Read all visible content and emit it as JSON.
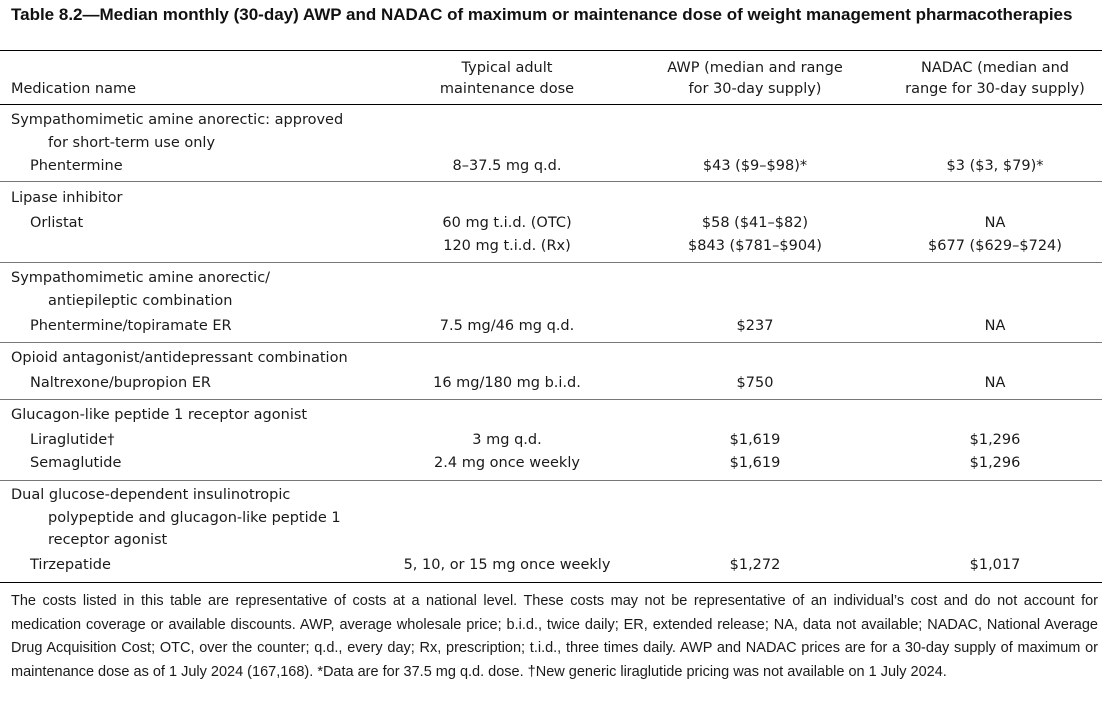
{
  "table": {
    "title": "Table 8.2—Median monthly (30-day) AWP and NADAC of maximum or maintenance dose of weight management pharmacotherapies",
    "headers": {
      "medication": "Medication name",
      "dose_line1": "Typical adult",
      "dose_line2": "maintenance dose",
      "awp_line1": "AWP (median and range",
      "awp_line2": "for 30-day supply)",
      "nadac_line1": "NADAC (median and",
      "nadac_line2": "range for 30-day supply)"
    },
    "groups": [
      {
        "category_lines": [
          "Sympathomimetic amine anorectic: approved",
          "for short-term use only"
        ],
        "rows": [
          {
            "name": "Phentermine",
            "dose": "8–37.5 mg q.d.",
            "awp": "$43 ($9–$98)*",
            "nadac": "$3 ($3, $79)*"
          }
        ]
      },
      {
        "category_lines": [
          "Lipase inhibitor"
        ],
        "rows": [
          {
            "name": "Orlistat",
            "dose": "60 mg t.i.d. (OTC)",
            "awp": "$58 ($41–$82)",
            "nadac": "NA"
          },
          {
            "name": "",
            "dose": "120 mg t.i.d. (Rx)",
            "awp": "$843 ($781–$904)",
            "nadac": "$677 ($629–$724)"
          }
        ]
      },
      {
        "category_lines": [
          "Sympathomimetic amine anorectic/",
          "antiepileptic combination"
        ],
        "rows": [
          {
            "name": "Phentermine/topiramate ER",
            "dose": "7.5 mg/46 mg q.d.",
            "awp": "$237",
            "nadac": "NA"
          }
        ]
      },
      {
        "category_lines": [
          "Opioid antagonist/antidepressant combination"
        ],
        "rows": [
          {
            "name": "Naltrexone/bupropion ER",
            "dose": "16 mg/180 mg b.i.d.",
            "awp": "$750",
            "nadac": "NA"
          }
        ]
      },
      {
        "category_lines": [
          "Glucagon-like peptide 1 receptor agonist"
        ],
        "rows": [
          {
            "name": "Liraglutide†",
            "dose": "3 mg q.d.",
            "awp": "$1,619",
            "nadac": "$1,296"
          },
          {
            "name": "Semaglutide",
            "dose": "2.4 mg once weekly",
            "awp": "$1,619",
            "nadac": "$1,296"
          }
        ]
      },
      {
        "category_lines": [
          "Dual glucose-dependent insulinotropic",
          "polypeptide and glucagon-like peptide 1",
          "receptor agonist"
        ],
        "rows": [
          {
            "name": "Tirzepatide",
            "dose": "5, 10, or 15 mg once weekly",
            "awp": "$1,272",
            "nadac": "$1,017"
          }
        ]
      }
    ],
    "footnote": "The costs listed in this table are representative of costs at a national level. These costs may not be representative of an individual’s cost and do not account for medication coverage or available discounts. AWP, average wholesale price; b.i.d., twice daily; ER, extended release; NA, data not available; NADAC, National Average Drug Acquisition Cost; OTC, over the counter; q.d., every day; Rx, prescription; t.i.d., three times daily. AWP and NADAC prices are for a 30-day supply of maximum or maintenance dose as of 1 July 2024 (167,168). *Data are for 37.5 mg q.d. dose. †New generic liraglutide pricing was not available on 1 July 2024."
  }
}
